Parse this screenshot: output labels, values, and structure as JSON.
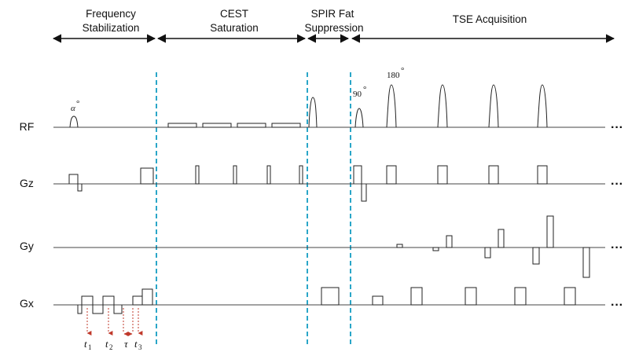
{
  "sections": [
    {
      "line1": "Frequency",
      "line2": "Stabilization"
    },
    {
      "line1": "CEST",
      "line2": "Saturation"
    },
    {
      "line1": "SPIR Fat",
      "line2": "Suppression"
    },
    {
      "line1": "TSE Acquisition",
      "line2": ""
    }
  ],
  "rows": [
    "RF",
    "Gz",
    "Gy",
    "Gx"
  ],
  "annotations": {
    "alpha": "α",
    "deg": "°",
    "ninety": "90",
    "one_eighty": "180"
  },
  "timing": {
    "t1": {
      "symbol": "t",
      "sub": "1"
    },
    "t2": {
      "symbol": "t",
      "sub": "2"
    },
    "tau": "τ",
    "t3": {
      "symbol": "t",
      "sub": "3"
    }
  },
  "continuation": "···",
  "colors": {
    "divider": "#2aa6c8",
    "marker": "#c0392b",
    "waveform": "#222222"
  }
}
